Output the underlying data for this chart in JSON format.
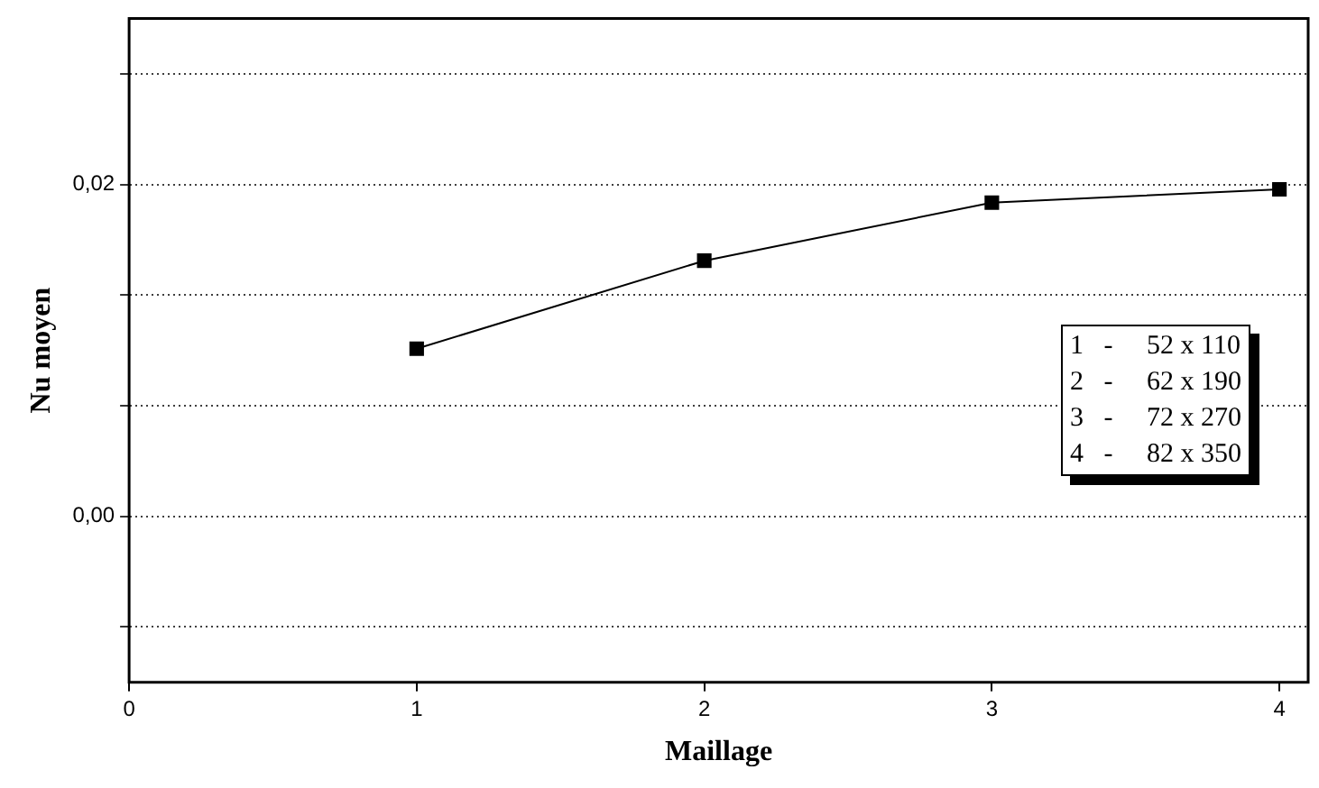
{
  "chart_data": {
    "type": "line",
    "xlabel": "Maillage",
    "ylabel": "Nu moyen",
    "x": [
      1,
      2,
      3,
      4
    ],
    "series": [
      {
        "color": "#000000",
        "values": [
          0.0101,
          0.0154,
          0.0189,
          0.0197
        ]
      }
    ],
    "xlim": [
      0,
      4.1
    ],
    "xticks": [
      0,
      1,
      2,
      3,
      4
    ],
    "ylim": [
      -0.01,
      0.03
    ],
    "yticks": [
      {
        "value": -0.00667,
        "label": null
      },
      {
        "value": 0,
        "label": "0,00"
      },
      {
        "value": 0.00667,
        "label": null
      },
      {
        "value": 0.01333,
        "label": null
      },
      {
        "value": 0.02,
        "label": "0,02"
      },
      {
        "value": 0.02667,
        "label": null
      }
    ],
    "grid": "y",
    "marker": "square",
    "line_style": "solid",
    "legend": false,
    "annotations": [
      "1   -     52 x 110",
      "2   -     62 x 190",
      "3   -     72 x 270",
      "4   -     82 x 350"
    ]
  }
}
